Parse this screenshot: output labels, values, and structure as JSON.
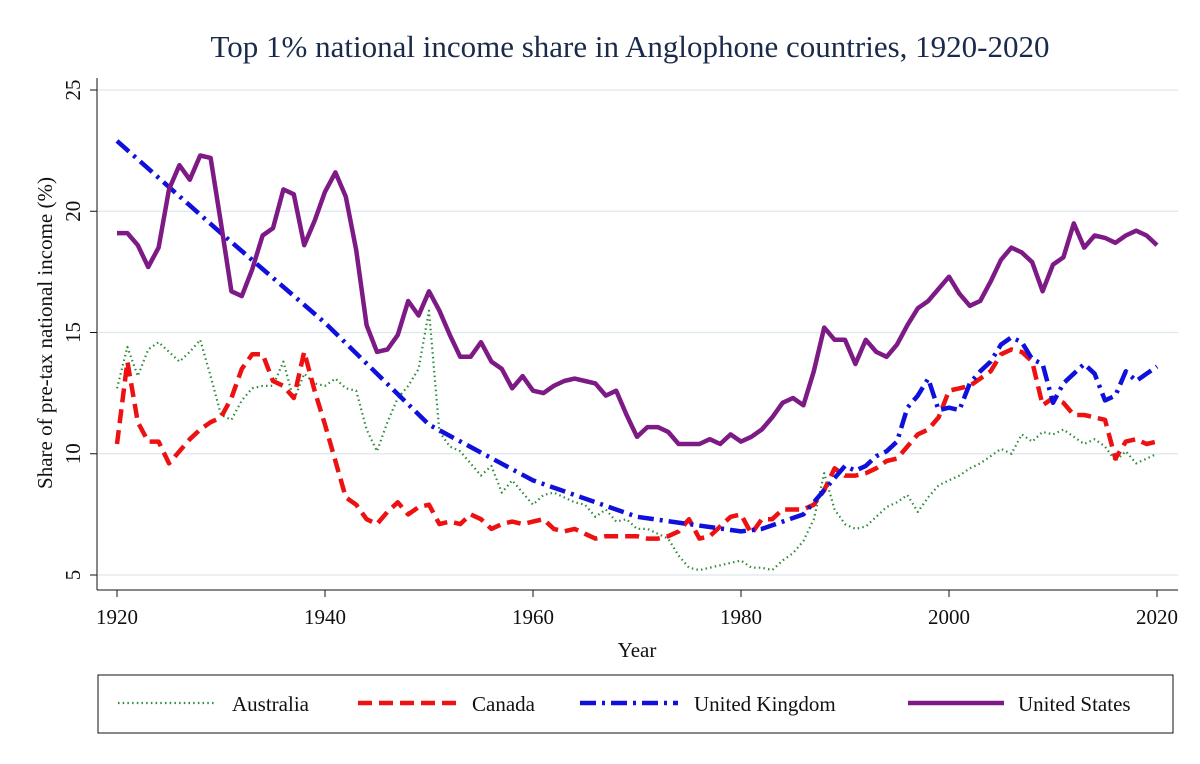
{
  "chart_data": {
    "type": "line",
    "title": "Top 1% national income share in Anglophone countries, 1920-2020",
    "xlabel": "Year",
    "ylabel": "Share of pre-tax national income (%)",
    "xlim": [
      1920,
      2020
    ],
    "ylim": [
      5,
      25
    ],
    "xticks": [
      1920,
      1940,
      1960,
      1980,
      2000,
      2020
    ],
    "yticks": [
      5,
      10,
      15,
      20,
      25
    ],
    "grid": "horizontal",
    "legend_position": "bottom",
    "colors": {
      "Australia": "#2e8b3c",
      "Canada": "#ee1111",
      "United Kingdom": "#1010dd",
      "United States": "#7d1a85"
    },
    "series": [
      {
        "name": "Australia",
        "style": "dotted",
        "x": [
          1920,
          1921,
          1922,
          1923,
          1924,
          1925,
          1926,
          1927,
          1928,
          1929,
          1930,
          1931,
          1932,
          1933,
          1934,
          1935,
          1936,
          1937,
          1938,
          1939,
          1940,
          1941,
          1942,
          1943,
          1944,
          1945,
          1946,
          1947,
          1948,
          1949,
          1950,
          1951,
          1952,
          1953,
          1954,
          1955,
          1956,
          1957,
          1958,
          1959,
          1960,
          1961,
          1962,
          1963,
          1964,
          1965,
          1966,
          1967,
          1968,
          1969,
          1970,
          1971,
          1972,
          1973,
          1974,
          1975,
          1976,
          1977,
          1978,
          1979,
          1980,
          1981,
          1982,
          1983,
          1984,
          1985,
          1986,
          1987,
          1988,
          1989,
          1990,
          1991,
          1992,
          1993,
          1994,
          1995,
          1996,
          1997,
          1998,
          1999,
          2000,
          2001,
          2002,
          2003,
          2004,
          2005,
          2006,
          2007,
          2008,
          2009,
          2010,
          2011,
          2012,
          2013,
          2014,
          2015,
          2016,
          2017,
          2018,
          2019,
          2020
        ],
        "y": [
          12.7,
          14.4,
          13.2,
          14.3,
          14.6,
          14.2,
          13.8,
          14.2,
          14.7,
          13.2,
          11.6,
          11.4,
          12.2,
          12.7,
          12.8,
          12.8,
          13.8,
          12.2,
          13.3,
          12.9,
          12.8,
          13.1,
          12.7,
          12.6,
          11.0,
          10.1,
          11.3,
          12.3,
          12.8,
          13.5,
          15.9,
          10.9,
          10.3,
          10.1,
          9.6,
          9.1,
          9.5,
          8.4,
          8.9,
          8.4,
          7.9,
          8.3,
          8.4,
          8.2,
          8.0,
          7.9,
          7.4,
          7.7,
          7.2,
          7.3,
          6.9,
          6.9,
          6.7,
          6.5,
          5.8,
          5.3,
          5.2,
          5.3,
          5.4,
          5.5,
          5.6,
          5.3,
          5.3,
          5.2,
          5.6,
          5.9,
          6.4,
          7.3,
          9.2,
          7.7,
          7.1,
          6.9,
          7.0,
          7.4,
          7.8,
          8.0,
          8.3,
          7.6,
          8.2,
          8.7,
          8.9,
          9.1,
          9.4,
          9.6,
          9.9,
          10.2,
          10.0,
          10.8,
          10.5,
          10.9,
          10.8,
          11.0,
          10.7,
          10.4,
          10.6,
          10.3,
          9.7,
          10.1,
          9.6,
          9.8,
          10.0
        ]
      },
      {
        "name": "Canada",
        "style": "dashed",
        "x": [
          1920,
          1921,
          1922,
          1923,
          1924,
          1925,
          1926,
          1927,
          1928,
          1929,
          1930,
          1931,
          1932,
          1933,
          1934,
          1935,
          1936,
          1937,
          1938,
          1939,
          1940,
          1941,
          1942,
          1943,
          1944,
          1945,
          1946,
          1947,
          1948,
          1949,
          1950,
          1951,
          1952,
          1953,
          1954,
          1955,
          1956,
          1957,
          1958,
          1959,
          1960,
          1961,
          1962,
          1963,
          1964,
          1965,
          1966,
          1967,
          1968,
          1969,
          1970,
          1971,
          1972,
          1973,
          1974,
          1975,
          1976,
          1977,
          1978,
          1979,
          1980,
          1981,
          1982,
          1983,
          1984,
          1985,
          1986,
          1987,
          1988,
          1989,
          1990,
          1991,
          1992,
          1993,
          1994,
          1995,
          1996,
          1997,
          1998,
          1999,
          2000,
          2001,
          2002,
          2003,
          2004,
          2005,
          2006,
          2007,
          2008,
          2009,
          2010,
          2011,
          2012,
          2013,
          2014,
          2015,
          2016,
          2017,
          2018,
          2019,
          2020
        ],
        "y": [
          10.4,
          13.8,
          11.3,
          10.5,
          10.5,
          9.6,
          10.1,
          10.6,
          11.0,
          11.3,
          11.5,
          12.3,
          13.5,
          14.1,
          14.1,
          13.0,
          12.8,
          12.3,
          14.2,
          12.6,
          11.2,
          9.7,
          8.2,
          7.9,
          7.3,
          7.1,
          7.6,
          8.0,
          7.5,
          7.8,
          7.9,
          7.1,
          7.2,
          7.1,
          7.5,
          7.3,
          6.9,
          7.1,
          7.2,
          7.1,
          7.2,
          7.3,
          6.9,
          6.8,
          6.9,
          6.7,
          6.5,
          6.6,
          6.6,
          6.6,
          6.6,
          6.5,
          6.5,
          6.6,
          6.8,
          7.3,
          6.5,
          6.6,
          7.0,
          7.4,
          7.5,
          6.7,
          7.3,
          7.3,
          7.7,
          7.7,
          7.7,
          7.9,
          8.5,
          9.4,
          9.1,
          9.1,
          9.2,
          9.4,
          9.7,
          9.8,
          10.3,
          10.8,
          11.0,
          11.5,
          12.6,
          12.7,
          12.8,
          13.1,
          13.4,
          14.1,
          14.3,
          14.2,
          13.8,
          12.0,
          12.3,
          12.1,
          11.6,
          11.6,
          11.5,
          11.4,
          9.8,
          10.5,
          10.6,
          10.4,
          10.5
        ]
      },
      {
        "name": "United Kingdom",
        "style": "dash-dot",
        "x": [
          1920,
          1930,
          1940,
          1950,
          1960,
          1970,
          1980,
          1982,
          1984,
          1986,
          1988,
          1990,
          1991,
          1992,
          1993,
          1994,
          1995,
          1996,
          1997,
          1998,
          1999,
          2000,
          2001,
          2002,
          2003,
          2004,
          2005,
          2006,
          2007,
          2008,
          2009,
          2010,
          2011,
          2012,
          2013,
          2014,
          2015,
          2016,
          2017,
          2018,
          2019,
          2020
        ],
        "y": [
          22.9,
          19.1,
          15.4,
          11.2,
          8.9,
          7.4,
          6.8,
          6.9,
          7.2,
          7.5,
          8.5,
          9.5,
          9.3,
          9.5,
          9.9,
          10.1,
          10.5,
          11.9,
          12.4,
          13.1,
          11.8,
          11.9,
          11.8,
          12.9,
          13.4,
          13.8,
          14.5,
          14.8,
          14.6,
          13.9,
          13.7,
          12.1,
          12.9,
          13.3,
          13.7,
          13.3,
          12.2,
          12.4,
          13.4,
          13.0,
          13.3,
          13.6
        ]
      },
      {
        "name": "United States",
        "style": "solid",
        "x": [
          1920,
          1921,
          1922,
          1923,
          1924,
          1925,
          1926,
          1927,
          1928,
          1929,
          1930,
          1931,
          1932,
          1933,
          1934,
          1935,
          1936,
          1937,
          1938,
          1939,
          1940,
          1941,
          1942,
          1943,
          1944,
          1945,
          1946,
          1947,
          1948,
          1949,
          1950,
          1951,
          1952,
          1953,
          1954,
          1955,
          1956,
          1957,
          1958,
          1959,
          1960,
          1961,
          1962,
          1963,
          1964,
          1965,
          1966,
          1967,
          1968,
          1969,
          1970,
          1971,
          1972,
          1973,
          1974,
          1975,
          1976,
          1977,
          1978,
          1979,
          1980,
          1981,
          1982,
          1983,
          1984,
          1985,
          1986,
          1987,
          1988,
          1989,
          1990,
          1991,
          1992,
          1993,
          1994,
          1995,
          1996,
          1997,
          1998,
          1999,
          2000,
          2001,
          2002,
          2003,
          2004,
          2005,
          2006,
          2007,
          2008,
          2009,
          2010,
          2011,
          2012,
          2013,
          2014,
          2015,
          2016,
          2017,
          2018,
          2019,
          2020
        ],
        "y": [
          19.1,
          19.1,
          18.6,
          17.7,
          18.5,
          20.9,
          21.9,
          21.3,
          22.3,
          22.2,
          19.5,
          16.7,
          16.5,
          17.6,
          19.0,
          19.3,
          20.9,
          20.7,
          18.6,
          19.6,
          20.8,
          21.6,
          20.6,
          18.4,
          15.3,
          14.2,
          14.3,
          14.9,
          16.3,
          15.7,
          16.7,
          15.9,
          14.9,
          14.0,
          14.0,
          14.6,
          13.8,
          13.5,
          12.7,
          13.2,
          12.6,
          12.5,
          12.8,
          13.0,
          13.1,
          13.0,
          12.9,
          12.4,
          12.6,
          11.6,
          10.7,
          11.1,
          11.1,
          10.9,
          10.4,
          10.4,
          10.4,
          10.6,
          10.4,
          10.8,
          10.5,
          10.7,
          11.0,
          11.5,
          12.1,
          12.3,
          12.0,
          13.4,
          15.2,
          14.7,
          14.7,
          13.7,
          14.7,
          14.2,
          14.0,
          14.5,
          15.3,
          16.0,
          16.3,
          16.8,
          17.3,
          16.6,
          16.1,
          16.3,
          17.1,
          18.0,
          18.5,
          18.3,
          17.9,
          16.7,
          17.8,
          18.1,
          19.5,
          18.5,
          19.0,
          18.9,
          18.7,
          19.0,
          19.2,
          19.0,
          18.6
        ]
      }
    ]
  }
}
